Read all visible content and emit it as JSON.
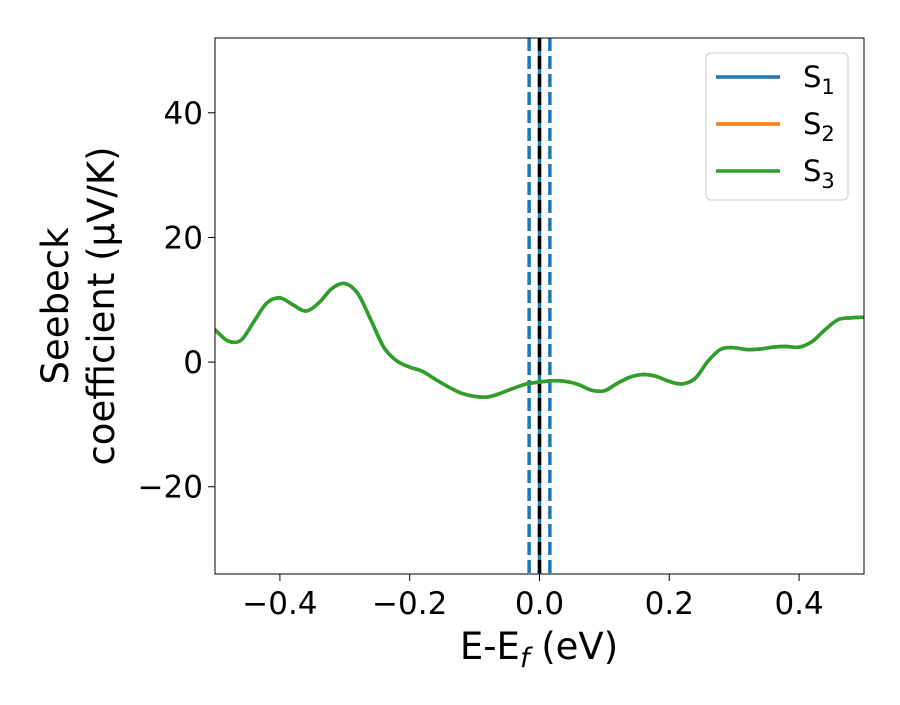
{
  "chart_data": {
    "type": "line",
    "xlabel_main": "E-E",
    "xlabel_sub": "f",
    "xlabel_unit": " (eV)",
    "ylabel_line1": "Seebeck",
    "ylabel_line2": "coefficient  (μV/K)",
    "xlim": [
      -0.5,
      0.5
    ],
    "ylim": [
      -34,
      52
    ],
    "xticks": [
      -0.4,
      -0.2,
      0.0,
      0.2,
      0.4
    ],
    "xtick_labels": [
      "−0.4",
      "−0.2",
      "0.0",
      "0.2",
      "0.4"
    ],
    "yticks": [
      -20,
      0,
      20,
      40
    ],
    "ytick_labels": [
      "−20",
      "0",
      "20",
      "40"
    ],
    "grid": false,
    "legend_position": "top-right",
    "vlines": [
      {
        "x": -0.016,
        "color": "#1f77b4",
        "style": "dashed"
      },
      {
        "x": 0.016,
        "color": "#1f77b4",
        "style": "dashed"
      },
      {
        "x": 0.0,
        "color": "#1f77b4",
        "style": "solid"
      },
      {
        "x": 0.0,
        "color": "#000000",
        "style": "dashed"
      }
    ],
    "series": [
      {
        "name": "S",
        "sub": "1",
        "color": "#1f77b4",
        "x": [
          -0.5,
          -0.48,
          -0.46,
          -0.44,
          -0.42,
          -0.4,
          -0.38,
          -0.36,
          -0.34,
          -0.32,
          -0.3,
          -0.28,
          -0.26,
          -0.24,
          -0.22,
          -0.2,
          -0.18,
          -0.16,
          -0.14,
          -0.12,
          -0.1,
          -0.08,
          -0.06,
          -0.04,
          -0.02,
          0.0,
          0.02,
          0.04,
          0.06,
          0.08,
          0.1,
          0.12,
          0.14,
          0.16,
          0.18,
          0.2,
          0.22,
          0.24,
          0.26,
          0.28,
          0.3,
          0.32,
          0.34,
          0.36,
          0.38,
          0.4,
          0.42,
          0.44,
          0.46,
          0.48,
          0.5
        ],
        "y": [
          5.2,
          3.4,
          3.5,
          6.5,
          9.5,
          10.3,
          9.2,
          8.2,
          9.5,
          11.8,
          12.6,
          11.0,
          6.8,
          2.4,
          0.2,
          -0.8,
          -1.5,
          -2.8,
          -4.0,
          -5.0,
          -5.5,
          -5.6,
          -5.0,
          -4.2,
          -3.5,
          -3.2,
          -3.0,
          -3.1,
          -3.6,
          -4.5,
          -4.6,
          -3.4,
          -2.4,
          -2.0,
          -2.3,
          -3.1,
          -3.5,
          -2.6,
          0.2,
          2.1,
          2.3,
          2.0,
          2.1,
          2.4,
          2.5,
          2.4,
          3.3,
          5.2,
          6.8,
          7.1,
          7.2
        ]
      },
      {
        "name": "S",
        "sub": "2",
        "color": "#ff7f0e",
        "x": [
          -0.5,
          -0.48,
          -0.46,
          -0.44,
          -0.42,
          -0.4,
          -0.38,
          -0.36,
          -0.34,
          -0.32,
          -0.3,
          -0.28,
          -0.26,
          -0.24,
          -0.22,
          -0.2,
          -0.18,
          -0.16,
          -0.14,
          -0.12,
          -0.1,
          -0.08,
          -0.06,
          -0.04,
          -0.02,
          0.0,
          0.02,
          0.04,
          0.06,
          0.08,
          0.1,
          0.12,
          0.14,
          0.16,
          0.18,
          0.2,
          0.22,
          0.24,
          0.26,
          0.28,
          0.3,
          0.32,
          0.34,
          0.36,
          0.38,
          0.4,
          0.42,
          0.44,
          0.46,
          0.48,
          0.5
        ],
        "y": [
          5.2,
          3.4,
          3.5,
          6.5,
          9.5,
          10.3,
          9.2,
          8.2,
          9.5,
          11.8,
          12.6,
          11.0,
          6.8,
          2.4,
          0.2,
          -0.8,
          -1.5,
          -2.8,
          -4.0,
          -5.0,
          -5.5,
          -5.6,
          -5.0,
          -4.2,
          -3.5,
          -3.2,
          -3.0,
          -3.1,
          -3.6,
          -4.5,
          -4.6,
          -3.4,
          -2.4,
          -2.0,
          -2.3,
          -3.1,
          -3.5,
          -2.6,
          0.2,
          2.1,
          2.3,
          2.0,
          2.1,
          2.4,
          2.5,
          2.4,
          3.3,
          5.2,
          6.8,
          7.1,
          7.2
        ]
      },
      {
        "name": "S",
        "sub": "3",
        "color": "#2ca02c",
        "x": [
          -0.5,
          -0.48,
          -0.46,
          -0.44,
          -0.42,
          -0.4,
          -0.38,
          -0.36,
          -0.34,
          -0.32,
          -0.3,
          -0.28,
          -0.26,
          -0.24,
          -0.22,
          -0.2,
          -0.18,
          -0.16,
          -0.14,
          -0.12,
          -0.1,
          -0.08,
          -0.06,
          -0.04,
          -0.02,
          0.0,
          0.02,
          0.04,
          0.06,
          0.08,
          0.1,
          0.12,
          0.14,
          0.16,
          0.18,
          0.2,
          0.22,
          0.24,
          0.26,
          0.28,
          0.3,
          0.32,
          0.34,
          0.36,
          0.38,
          0.4,
          0.42,
          0.44,
          0.46,
          0.48,
          0.5
        ],
        "y": [
          5.2,
          3.4,
          3.5,
          6.5,
          9.5,
          10.3,
          9.2,
          8.2,
          9.5,
          11.8,
          12.6,
          11.0,
          6.8,
          2.4,
          0.2,
          -0.8,
          -1.5,
          -2.8,
          -4.0,
          -5.0,
          -5.5,
          -5.6,
          -5.0,
          -4.2,
          -3.5,
          -3.2,
          -3.0,
          -3.1,
          -3.6,
          -4.5,
          -4.6,
          -3.4,
          -2.4,
          -2.0,
          -2.3,
          -3.1,
          -3.5,
          -2.6,
          0.2,
          2.1,
          2.3,
          2.0,
          2.1,
          2.4,
          2.5,
          2.4,
          3.3,
          5.2,
          6.8,
          7.1,
          7.2
        ]
      }
    ]
  }
}
